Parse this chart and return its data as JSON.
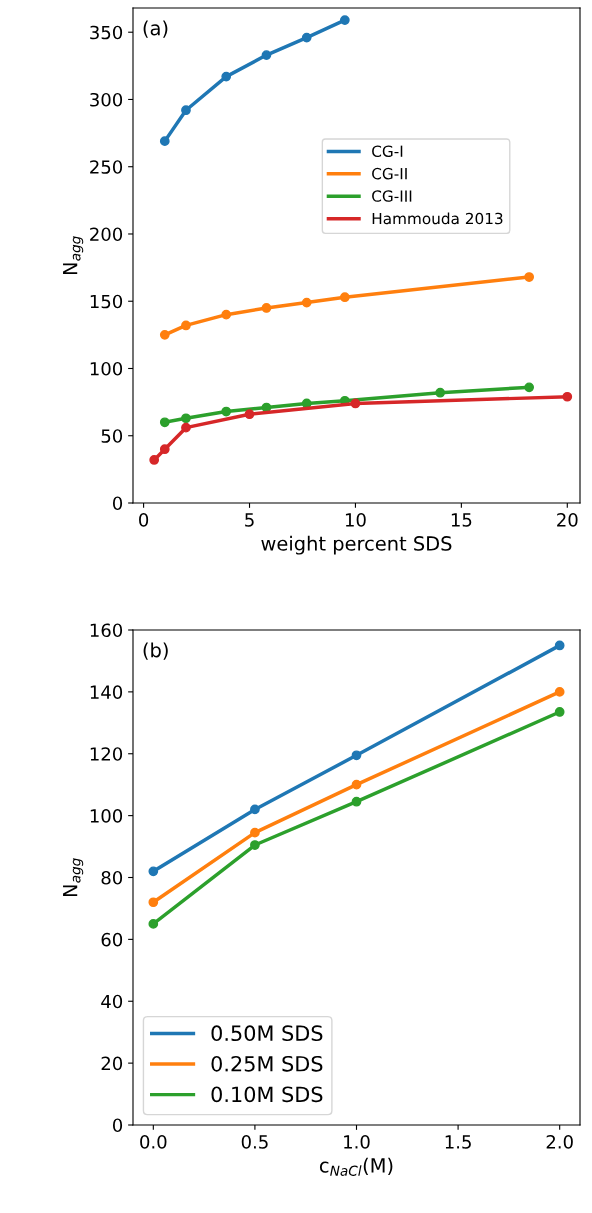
{
  "chart_data": [
    {
      "type": "line",
      "xlabel": "weight percent SDS",
      "ylabel": "N$_{agg}$",
      "annotations": [
        "(a)"
      ],
      "xlim": [
        -0.5,
        20.6
      ],
      "ylim": [
        0,
        368
      ],
      "xticks": [
        0,
        5,
        10,
        15,
        20
      ],
      "yticks": [
        0,
        50,
        100,
        150,
        200,
        250,
        300,
        350
      ],
      "marker": "circle",
      "line_style": "solid",
      "grid": false,
      "legend": "right",
      "series": [
        {
          "name": "CG-I",
          "color": "#1f77b4",
          "x": [
            1,
            2,
            3.9,
            5.8,
            7.7,
            9.5
          ],
          "values": [
            269,
            292,
            317,
            333,
            346,
            359
          ]
        },
        {
          "name": "CG-II",
          "color": "#ff7f0e",
          "x": [
            1,
            2,
            3.9,
            5.8,
            7.7,
            9.5,
            18.2
          ],
          "values": [
            125,
            132,
            140,
            145,
            149,
            153,
            168
          ]
        },
        {
          "name": "CG-III",
          "color": "#2ca02c",
          "x": [
            1,
            2,
            3.9,
            5.8,
            7.7,
            9.5,
            14,
            18.2
          ],
          "values": [
            60,
            63,
            68,
            71,
            74,
            76,
            82,
            86
          ]
        },
        {
          "name": "Hammouda 2013",
          "color": "#d62728",
          "x": [
            0.5,
            1,
            2,
            5,
            10,
            20
          ],
          "values": [
            32,
            40,
            56,
            66,
            74,
            79
          ]
        }
      ]
    },
    {
      "type": "line",
      "xlabel": "c$_{NaCl}$(M)",
      "ylabel": "N$_{agg}$",
      "annotations": [
        "(b)"
      ],
      "xlim": [
        -0.1,
        2.1
      ],
      "ylim": [
        0,
        160
      ],
      "xticks": [
        {
          "value": 0,
          "label": "0.0"
        },
        0.5,
        {
          "value": 1,
          "label": "1.0"
        },
        1.5,
        {
          "value": 2,
          "label": "2.0"
        }
      ],
      "yticks": [
        0,
        20,
        40,
        60,
        80,
        100,
        120,
        140,
        160
      ],
      "marker": "circle",
      "line_style": "solid",
      "grid": false,
      "legend": "lower left",
      "series": [
        {
          "name": "0.50M SDS",
          "color": "#1f77b4",
          "x": [
            0,
            0.5,
            1,
            2
          ],
          "values": [
            82,
            102,
            119.5,
            155
          ]
        },
        {
          "name": "0.25M SDS",
          "color": "#ff7f0e",
          "x": [
            0,
            0.5,
            1,
            2
          ],
          "values": [
            72,
            94.5,
            110,
            140
          ]
        },
        {
          "name": "0.10M SDS",
          "color": "#2ca02c",
          "x": [
            0,
            0.5,
            1,
            2
          ],
          "values": [
            65,
            90.5,
            104.5,
            133.5
          ]
        }
      ]
    }
  ]
}
